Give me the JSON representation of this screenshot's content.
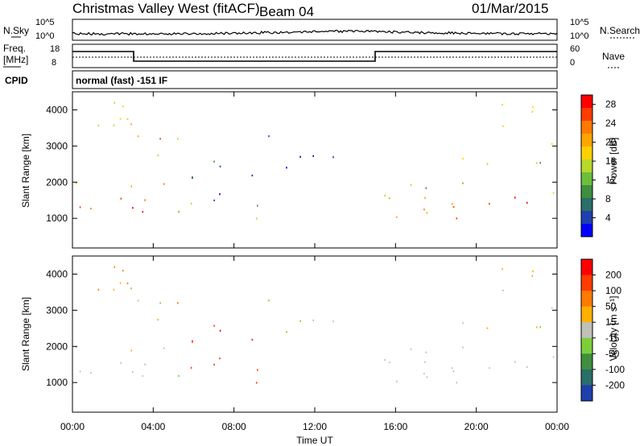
{
  "header": {
    "station": "Christmas Valley West (fitACF)",
    "beam": "Beam 04",
    "date": "01/Mar/2015"
  },
  "noise_panel": {
    "left_label": "N.Sky",
    "right_label": "N.Search",
    "left_ticks": [
      "10^5",
      "10^0"
    ],
    "right_ticks": [
      "10^5",
      "10^0"
    ]
  },
  "freq_panel": {
    "left_label_1": "Freq.",
    "left_label_2": "[MHz]",
    "left_ticks": [
      "18",
      "8"
    ],
    "right_ticks": [
      "60",
      "0"
    ],
    "right_label": "Nave"
  },
  "cpid": {
    "label": "CPID",
    "mode": "normal (fast) -151 IF"
  },
  "chart_data": [
    {
      "type": "heatmap",
      "name": "power",
      "ylabel": "Slant Range [km]",
      "xlabel": "Time UT",
      "x_ticks": [
        "00:00",
        "04:00",
        "08:00",
        "12:00",
        "16:00",
        "20:00",
        "00:00"
      ],
      "x_range_hours": [
        0,
        24
      ],
      "y_ticks": [
        1000,
        2000,
        3000,
        4000
      ],
      "y_range_km": [
        180,
        4500
      ],
      "colorbar": {
        "label": "Power [dB]",
        "ticks": [
          4,
          8,
          12,
          16,
          20,
          24,
          28
        ],
        "range": [
          0,
          30
        ],
        "colors": [
          "#0000ff",
          "#1f3fae",
          "#2a6e6a",
          "#3f8f3f",
          "#6cbf3a",
          "#b8d82a",
          "#ffd000",
          "#ffa500",
          "#ff7a00",
          "#ff3c00",
          "#ff0000"
        ]
      }
    },
    {
      "type": "heatmap",
      "name": "velocity",
      "ylabel": "Slant Range [km]",
      "xlabel": "Time UT",
      "x_ticks": [
        "00:00",
        "04:00",
        "08:00",
        "12:00",
        "16:00",
        "20:00",
        "00:00"
      ],
      "x_range_hours": [
        0,
        24
      ],
      "y_ticks": [
        1000,
        2000,
        3000,
        4000
      ],
      "y_range_km": [
        180,
        4500
      ],
      "colorbar": {
        "label": "Velocity [m s⁻¹]",
        "ticks": [
          200,
          100,
          50,
          15,
          -15,
          -50,
          -100,
          -200
        ],
        "colors": [
          "#1f3fae",
          "#2a6e6a",
          "#3f8f3f",
          "#7ccf3a",
          "#c0c0b8",
          "#ffb000",
          "#ff7a00",
          "#ff3c00",
          "#ff0000"
        ]
      }
    }
  ]
}
